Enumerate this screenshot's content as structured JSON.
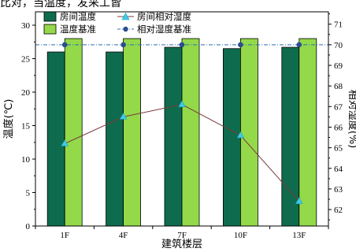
{
  "header_fragment": "比对，当温度，发采工皆",
  "chart_data": {
    "type": "bar",
    "categories": [
      "1F",
      "4F",
      "7F",
      "10F",
      "13F"
    ],
    "series": [
      {
        "name": "房间温度",
        "kind": "bar",
        "axis": "left",
        "values": [
          26.0,
          26.0,
          26.7,
          26.5,
          26.7
        ],
        "color": "#0f6b4e"
      },
      {
        "name": "温度基准",
        "kind": "bar",
        "axis": "left",
        "values": [
          28,
          28,
          28,
          28,
          28
        ],
        "color": "#93d94a"
      },
      {
        "name": "房间相对湿度",
        "kind": "line",
        "axis": "right",
        "values": [
          65.2,
          66.5,
          67.1,
          65.6,
          62.4
        ],
        "color": "#7b3b3b",
        "marker_color": "#3ecbe6"
      },
      {
        "name": "相对湿度基准",
        "kind": "line",
        "axis": "right",
        "values": [
          70,
          70,
          70,
          70,
          70
        ],
        "color": "#2f6fb5",
        "marker_color": "#2a4f8f"
      }
    ],
    "xlabel": "建筑楼层",
    "ylabel": "温度(℃)",
    "y2label": "相对湿度(%)",
    "ylim": [
      0,
      32
    ],
    "y2lim": [
      61.2,
      71.6
    ],
    "yticks": [
      0,
      5,
      10,
      15,
      20,
      25,
      30
    ],
    "y2ticks": [
      62,
      63,
      64,
      65,
      66,
      67,
      68,
      69,
      70,
      71
    ],
    "legend_position": "top-left",
    "grid": false
  }
}
